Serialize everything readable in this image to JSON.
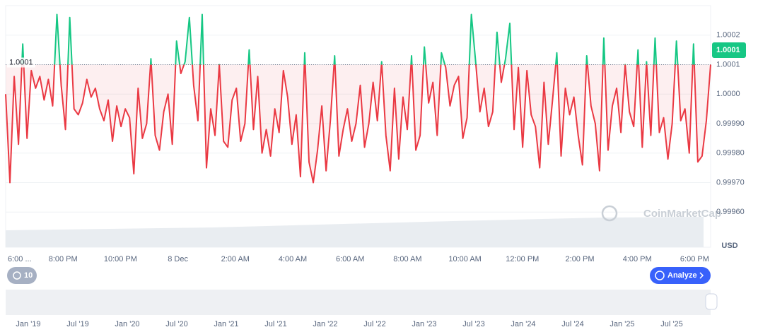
{
  "chart_data": {
    "type": "line",
    "values": [
      1.0,
      0.9997,
      1.00006,
      0.99983,
      1.00017,
      0.99985,
      1.00008,
      1.00002,
      1.00006,
      0.99998,
      1.00005,
      0.99996,
      1.00027,
      1.00003,
      0.99988,
      1.00026,
      0.99995,
      0.99993,
      0.99997,
      1.00005,
      0.99999,
      1.00002,
      0.99995,
      0.99991,
      0.99998,
      0.99984,
      0.99996,
      0.99989,
      0.99995,
      0.99992,
      0.99973,
      1.00002,
      0.99985,
      0.9999,
      1.00012,
      0.99986,
      0.99981,
      0.99994,
      1.0,
      0.99983,
      1.00018,
      1.00007,
      1.00011,
      1.00026,
      1.00003,
      0.99991,
      1.00027,
      0.99975,
      0.99995,
      0.99986,
      1.0001,
      0.99984,
      0.99982,
      0.99998,
      1.00002,
      0.99984,
      0.9999,
      1.00015,
      0.99988,
      1.00006,
      0.9998,
      0.99988,
      0.99979,
      0.99995,
      0.99987,
      1.00008,
      0.99999,
      0.99983,
      0.99993,
      0.99972,
      1.00014,
      0.99977,
      0.9997,
      0.99981,
      0.99996,
      0.99974,
      0.99991,
      1.00013,
      0.99979,
      0.99988,
      0.99995,
      0.99984,
      0.9999,
      1.00003,
      0.99982,
      0.9999,
      1.00004,
      0.99991,
      1.00011,
      0.99986,
      0.99974,
      1.00002,
      0.99978,
      0.99999,
      0.99988,
      1.00013,
      0.99981,
      0.99986,
      1.00016,
      0.99997,
      1.00004,
      0.99986,
      1.00014,
      1.00009,
      0.99996,
      1.00003,
      1.00006,
      0.99985,
      0.99992,
      1.00027,
      1.00011,
      0.99994,
      1.00002,
      0.99989,
      0.99994,
      1.00021,
      1.00004,
      1.00012,
      1.00024,
      0.99988,
      1.00009,
      0.99982,
      1.00008,
      0.99993,
      0.99989,
      0.99975,
      1.00004,
      0.99983,
      0.99998,
      1.00014,
      0.99979,
      1.00002,
      0.99993,
      0.99999,
      0.99986,
      0.99976,
      1.00013,
      0.99996,
      0.9999,
      0.99974,
      1.00019,
      0.99981,
      0.99996,
      1.00002,
      0.99987,
      1.0001,
      0.99994,
      0.99989,
      1.00015,
      0.99982,
      1.00011,
      0.99986,
      1.00019,
      0.99987,
      0.99992,
      0.99978,
      0.9999,
      1.00018,
      0.99991,
      0.99995,
      0.9998,
      1.00017,
      0.99977,
      0.99979,
      0.99991,
      1.0001
    ],
    "up_color": "#16c784",
    "down_color": "#ea3943",
    "baseline": 1.0001,
    "last_price": 1.0001,
    "ylim": [
      0.9995,
      1.0003
    ],
    "yticks": [
      1.0002,
      1.0001,
      {
        "value": 1,
        "label": "1.0000"
      },
      {
        "value": 0.9999,
        "label": "0.99990"
      },
      {
        "value": 0.9998,
        "label": "0.99980"
      },
      {
        "value": 0.9997,
        "label": "0.99970"
      },
      {
        "value": 0.9996,
        "label": "0.99960"
      }
    ],
    "grid": true,
    "x_labels": [
      "6:00 ...",
      "8:00 PM",
      "10:00 PM",
      "8 Dec",
      "2:00 AM",
      "4:00 AM",
      "6:00 AM",
      "8:00 AM",
      "10:00 AM",
      "12:00 PM",
      "2:00 PM",
      "4:00 PM",
      "6:00 PM"
    ],
    "currency": "USD",
    "watermark": "CoinMarketCap",
    "history_count": 10,
    "analyze_button": "Analyze",
    "navigator_labels": [
      "Jan '19",
      "Jul '19",
      "Jan '20",
      "Jul '20",
      "Jan '21",
      "Jul '21",
      "Jan '22",
      "Jul '22",
      "Jan '23",
      "Jul '23",
      "Jan '24",
      "Jul '24",
      "Jan '25",
      "Jul '25"
    ]
  }
}
